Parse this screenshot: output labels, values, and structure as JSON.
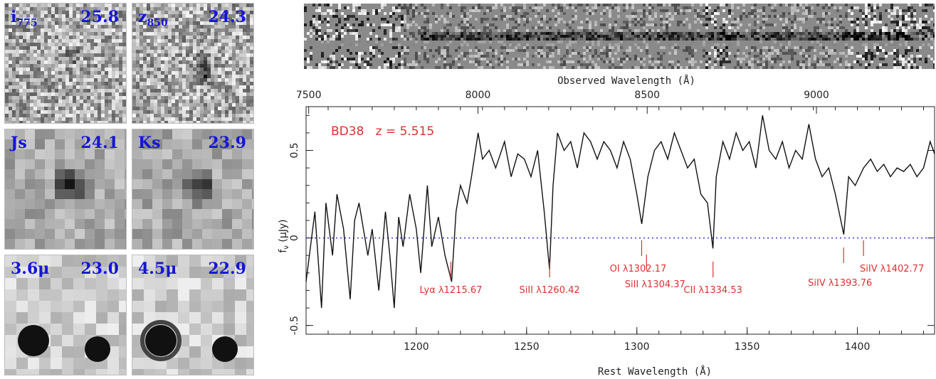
{
  "panels": [
    {
      "band_main": "i",
      "band_sub": "775",
      "mag": "25.8",
      "bg": "noisy"
    },
    {
      "band_main": "z",
      "band_sub": "850",
      "mag": "24.3",
      "bg": "noisy"
    },
    {
      "band_main": "Js",
      "band_sub": "",
      "mag": "24.1",
      "bg": "blocky"
    },
    {
      "band_main": "Ks",
      "band_sub": "",
      "mag": "23.9",
      "bg": "blocky"
    },
    {
      "band_main": "3.6μ",
      "band_sub": "",
      "mag": "23.0",
      "bg": "ir"
    },
    {
      "band_main": "4.5μ",
      "band_sub": "",
      "mag": "22.9",
      "bg": "ir"
    }
  ],
  "spectrum2d": {
    "xlabel": "Observed Wavelength (Å)"
  },
  "chart_data": {
    "type": "line",
    "title": "BD38   z = 5.515",
    "xlabel": "Rest Wavelength (Å)",
    "ylabel": "f_ν (μJy)",
    "top_xlabel_ticks": [
      "7500",
      "8000",
      "8500",
      "9000"
    ],
    "top_x_values": [
      7500,
      8000,
      8500,
      9000
    ],
    "xlim": [
      1150,
      1435
    ],
    "ylim": [
      -0.55,
      0.75
    ],
    "x_ticks": [
      "1200",
      "1250",
      "1300",
      "1350",
      "1400"
    ],
    "x_tick_values": [
      1200,
      1250,
      1300,
      1350,
      1400
    ],
    "y_ticks": [
      "-0.5",
      "0",
      "0.5"
    ],
    "y_tick_values": [
      -0.5,
      0,
      0.5
    ],
    "zero_line": true,
    "colors": {
      "accent": "#e03030",
      "zero": "#3a3ad8",
      "label": "#1515d6",
      "line": "#111111"
    },
    "annotations": [
      {
        "text": "Lyα λ1215.67",
        "x": 1215.67
      },
      {
        "text": "SiII λ1260.42",
        "x": 1260.42
      },
      {
        "text": "OI λ1302.17",
        "x": 1302.17
      },
      {
        "text": "SiII λ1304.37",
        "x": 1304.37
      },
      {
        "text": "CII λ1334.53",
        "x": 1334.53
      },
      {
        "text": "SiIV λ1393.76",
        "x": 1393.76
      },
      {
        "text": "SiIV λ1402.77",
        "x": 1402.77
      }
    ],
    "series": [
      {
        "x": [
          1150,
          1154,
          1157,
          1159,
          1162,
          1164,
          1167,
          1170,
          1172,
          1174,
          1178,
          1180,
          1183,
          1186,
          1188,
          1190,
          1192,
          1194,
          1197,
          1200,
          1202,
          1205,
          1207,
          1210,
          1213,
          1216,
          1218,
          1220,
          1223,
          1225,
          1228,
          1230,
          1233,
          1236,
          1240,
          1243,
          1246,
          1249,
          1252,
          1255,
          1258,
          1260.4,
          1262,
          1264,
          1267,
          1270,
          1273,
          1276,
          1279,
          1282,
          1285,
          1288,
          1291,
          1294,
          1297,
          1300,
          1302.2,
          1305,
          1308,
          1311,
          1314,
          1317,
          1320,
          1323,
          1326,
          1329,
          1332,
          1334.5,
          1336,
          1339,
          1342,
          1345,
          1348,
          1351,
          1354,
          1357,
          1360,
          1363,
          1366,
          1369,
          1372,
          1375,
          1378,
          1381,
          1384,
          1387,
          1390,
          1393.8,
          1396,
          1399,
          1402.8,
          1406,
          1409,
          1412,
          1415,
          1418,
          1421,
          1424,
          1427,
          1430,
          1433,
          1435
        ],
        "y": [
          -0.25,
          0.15,
          -0.4,
          0.2,
          -0.1,
          0.25,
          0.05,
          -0.35,
          0.1,
          0.2,
          -0.1,
          0.05,
          -0.3,
          0.15,
          -0.1,
          -0.4,
          0.12,
          -0.05,
          0.25,
          0.05,
          -0.2,
          0.3,
          -0.05,
          0.12,
          -0.1,
          -0.25,
          0.15,
          0.3,
          0.2,
          0.35,
          0.6,
          0.45,
          0.5,
          0.4,
          0.55,
          0.35,
          0.48,
          0.45,
          0.35,
          0.5,
          0.15,
          -0.18,
          0.3,
          0.6,
          0.5,
          0.55,
          0.4,
          0.6,
          0.55,
          0.45,
          0.55,
          0.5,
          0.4,
          0.55,
          0.45,
          0.25,
          0.08,
          0.35,
          0.5,
          0.55,
          0.45,
          0.6,
          0.5,
          0.4,
          0.45,
          0.25,
          0.2,
          -0.06,
          0.35,
          0.55,
          0.45,
          0.6,
          0.5,
          0.55,
          0.4,
          0.7,
          0.5,
          0.45,
          0.55,
          0.4,
          0.5,
          0.45,
          0.65,
          0.45,
          0.35,
          0.4,
          0.25,
          0.02,
          0.35,
          0.3,
          0.4,
          0.45,
          0.38,
          0.42,
          0.35,
          0.4,
          0.38,
          0.42,
          0.35,
          0.4,
          0.55,
          0.48
        ]
      }
    ]
  }
}
